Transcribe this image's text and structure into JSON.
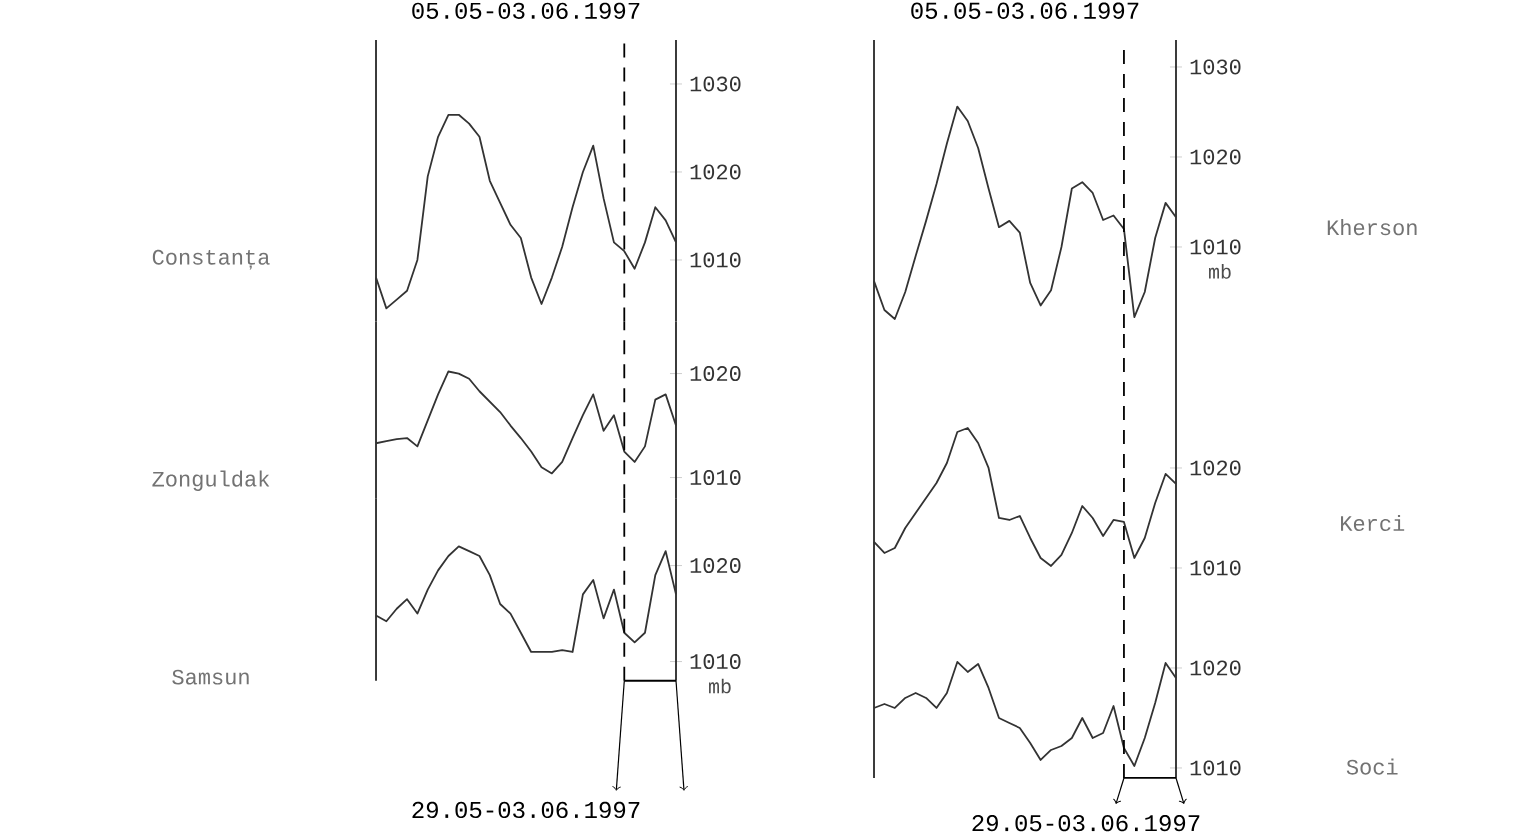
{
  "chart_data": [
    {
      "type": "line",
      "title": "05.05-03.06.1997",
      "ylabel": "Constanța",
      "color": "#333333",
      "tick_labels": "y",
      "ylim": [
        1003,
        1035
      ],
      "yticks": [
        1010,
        1020,
        1030
      ],
      "categories": [
        null,
        null,
        null,
        null,
        null,
        null,
        null,
        null,
        null,
        null,
        null,
        null,
        null,
        null,
        null,
        null,
        null,
        null,
        null,
        null,
        null,
        null,
        null,
        null,
        null,
        null,
        null,
        null,
        null,
        null
      ],
      "values": [
        1008,
        1004.5,
        1005.5,
        1006.5,
        1010,
        1019.5,
        1024,
        1026.5,
        1026.5,
        1025.5,
        1024,
        1019,
        1016.5,
        1014,
        1012.5,
        1008,
        1005,
        1008,
        1011.5,
        1016,
        1020,
        1023,
        1017,
        1012,
        1011,
        1009,
        1012,
        1016,
        1014.5,
        1012
      ]
    },
    {
      "type": "line",
      "ylabel": "Zonguldak",
      "color": "#333333",
      "tick_labels": "y",
      "ylim": [
        1008,
        1025
      ],
      "yticks": [
        1010,
        1020
      ],
      "categories": [
        null,
        null,
        null,
        null,
        null,
        null,
        null,
        null,
        null,
        null,
        null,
        null,
        null,
        null,
        null,
        null,
        null,
        null,
        null,
        null,
        null,
        null,
        null,
        null,
        null,
        null,
        null,
        null,
        null,
        null
      ],
      "values": [
        1013.3,
        1013.5,
        1013.7,
        1013.8,
        1013,
        1015.5,
        1018,
        1020.2,
        1020,
        1019.5,
        1018.3,
        1017.3,
        1016.3,
        1015,
        1013.8,
        1012.5,
        1011,
        1010.4,
        1011.5,
        1013.8,
        1016,
        1018,
        1014.5,
        1016,
        1012.5,
        1011.5,
        1013,
        1017.5,
        1018,
        1015
      ]
    },
    {
      "type": "line",
      "ylabel": "Samsun",
      "color": "#333333",
      "tick_labels": "y",
      "ylim": [
        1008,
        1027
      ],
      "yticks": [
        1010,
        1020
      ],
      "annotations": [
        "mb",
        "29.05-03.06.1997"
      ],
      "categories": [
        null,
        null,
        null,
        null,
        null,
        null,
        null,
        null,
        null,
        null,
        null,
        null,
        null,
        null,
        null,
        null,
        null,
        null,
        null,
        null,
        null,
        null,
        null,
        null,
        null,
        null,
        null,
        null,
        null,
        null
      ],
      "values": [
        1014.8,
        1014.2,
        1015.5,
        1016.5,
        1015,
        1017.5,
        1019.5,
        1021,
        1022,
        1021.5,
        1021,
        1019,
        1016,
        1015,
        1013,
        1011,
        1011,
        1011,
        1011.2,
        1011,
        1017,
        1018.5,
        1014.5,
        1017.5,
        1013,
        1012,
        1013,
        1019,
        1021.5,
        1017
      ]
    },
    {
      "type": "line",
      "title": "05.05-03.06.1997",
      "ylabel": "Kherson",
      "color": "#333333",
      "tick_labels": "y",
      "ylim": [
        1001,
        1033
      ],
      "yticks": [
        1010,
        1020,
        1030
      ],
      "annotations": [
        "mb"
      ],
      "categories": [
        null,
        null,
        null,
        null,
        null,
        null,
        null,
        null,
        null,
        null,
        null,
        null,
        null,
        null,
        null,
        null,
        null,
        null,
        null,
        null,
        null,
        null,
        null,
        null,
        null,
        null,
        null,
        null,
        null,
        null
      ],
      "values": [
        1006.2,
        1003,
        1002,
        1005,
        1009,
        1012.9,
        1017,
        1021.5,
        1025.6,
        1024,
        1021,
        1016.5,
        1012.2,
        1012.9,
        1011.6,
        1006,
        1003.5,
        1005.2,
        1010,
        1016.5,
        1017.2,
        1016,
        1013,
        1013.5,
        1012,
        1002.2,
        1005,
        1011,
        1014.9,
        1013.3
      ]
    },
    {
      "type": "line",
      "ylabel": "Kerci",
      "color": "#333333",
      "tick_labels": "y",
      "ylim": [
        1008,
        1034
      ],
      "yticks": [
        1010,
        1020
      ],
      "categories": [
        null,
        null,
        null,
        null,
        null,
        null,
        null,
        null,
        null,
        null,
        null,
        null,
        null,
        null,
        null,
        null,
        null,
        null,
        null,
        null,
        null,
        null,
        null,
        null,
        null,
        null,
        null,
        null,
        null,
        null
      ],
      "values": [
        1012.6,
        1011.5,
        1012,
        1014,
        1015.5,
        1017,
        1018.5,
        1020.5,
        1023.6,
        1024,
        1022.5,
        1020,
        1015,
        1014.8,
        1015.2,
        1013,
        1011,
        1010.2,
        1011.3,
        1013.5,
        1016.2,
        1015,
        1013.2,
        1014.8,
        1014.6,
        1011,
        1013,
        1016.5,
        1019.4,
        1018.4
      ]
    },
    {
      "type": "line",
      "ylabel": "Soci",
      "color": "#333333",
      "tick_labels": "y",
      "ylim": [
        1009,
        1028
      ],
      "yticks": [
        1010,
        1020
      ],
      "annotations": [
        "29.05-03.06.1997"
      ],
      "categories": [
        null,
        null,
        null,
        null,
        null,
        null,
        null,
        null,
        null,
        null,
        null,
        null,
        null,
        null,
        null,
        null,
        null,
        null,
        null,
        null,
        null,
        null,
        null,
        null,
        null,
        null,
        null,
        null,
        null,
        null
      ],
      "values": [
        1016,
        1016.4,
        1016,
        1017,
        1017.5,
        1017,
        1016,
        1017.5,
        1020.6,
        1019.6,
        1020.4,
        1018,
        1015,
        1014.5,
        1014,
        1012.5,
        1010.8,
        1011.8,
        1012.2,
        1013,
        1015,
        1013,
        1013.5,
        1016.2,
        1012,
        1010.2,
        1013,
        1016.5,
        1020.5,
        1019
      ]
    }
  ]
}
